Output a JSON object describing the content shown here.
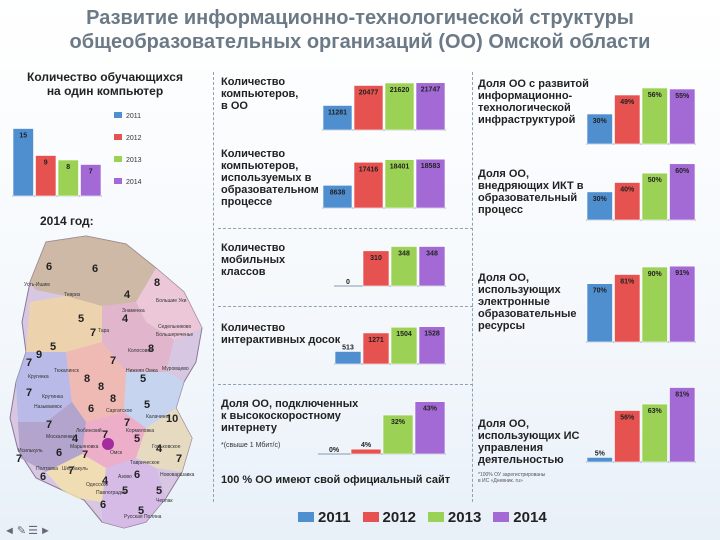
{
  "title_line1": "Развитие информационно-технологической структуры",
  "title_line2": "общеобразовательных организаций (ОО) Омской области",
  "colors": {
    "2011": "#4f8fd0",
    "2012": "#e5524f",
    "2013": "#9bd154",
    "2014": "#a36ad6"
  },
  "left_chart": {
    "title_line1": "Количество обучающихся",
    "title_line2": "на один компьютер"
  },
  "map_section": {
    "title": "2014 год:",
    "regions": [
      "Усть-Ишим",
      "Тевриз",
      "Знаменка",
      "Тара",
      "Большереченье",
      "Колосовка",
      "Кругинка",
      "Тюкалинск",
      "Нижняя Омка",
      "Называевск",
      "Саргатское",
      "Исилькуль",
      "Москаленки",
      "Марьяновка",
      "Омск",
      "Калачинск",
      "Полтавка",
      "Шербакуль",
      "Одесское",
      "Азово",
      "Таврическое",
      "Павлоградка",
      "Русская Поляна",
      "Черлак",
      "Нововаршавка",
      "Любинский",
      "Кормиловка",
      "Горьковское",
      "Муромцево",
      "Седельниково",
      "Крутинка",
      "Большие Уки"
    ],
    "numbers": [
      "6",
      "6",
      "8",
      "4",
      "4",
      "5",
      "5",
      "7",
      "7",
      "8",
      "9",
      "7",
      "8",
      "8",
      "5",
      "7",
      "8",
      "6",
      "5",
      "7",
      "10",
      "7",
      "4",
      "7",
      "5",
      "7",
      "6",
      "7",
      "4",
      "7",
      "6",
      "7",
      "4",
      "6",
      "5",
      "6",
      "5",
      "5"
    ]
  },
  "labels": {
    "computers": [
      "Количество",
      "компьютеров,",
      "в ОО"
    ],
    "computers_edu": [
      "Количество",
      "компьютеров,",
      "используемых в",
      "образовательном",
      "процессе"
    ],
    "mobile": [
      "Количество",
      "мобильных",
      "классов"
    ],
    "boards": [
      "Количество",
      "интерактивных досок"
    ],
    "internet": [
      "Доля ОО, подключенных",
      "к высокоскоростному",
      "интернету"
    ],
    "internet_note": "*(свыше 1 Мбит/с)",
    "site": "100 % ОО имеют свой официальный сайт",
    "infra": [
      "Доля ОО с развитой",
      "информационно-",
      "технологической",
      "инфраструктурой"
    ],
    "ikt": [
      "Доля ОО,",
      "внедряющих ИКТ в",
      "образовательный",
      "процесс"
    ],
    "eresources": [
      "Доля ОО,",
      "использующих",
      "электронные",
      "образовательные",
      "ресурсы"
    ],
    "is": [
      "Доля ОО,",
      "использующих ИС",
      "управления",
      "деятельностью"
    ],
    "is_note": [
      "*100% ОУ зарегистрированы",
      "в ИС «Дневник. ru»"
    ]
  },
  "legend": [
    "2011",
    "2012",
    "2013",
    "2014"
  ],
  "chart_data": [
    {
      "id": "students_per_pc",
      "type": "bar",
      "title": "Количество обучающихся на один компьютер",
      "categories": [
        "2011",
        "2012",
        "2013",
        "2014"
      ],
      "values": [
        15,
        9,
        8,
        7
      ],
      "labels": [
        "15",
        "9",
        "8",
        "7"
      ],
      "ylim": [
        0,
        16
      ]
    },
    {
      "id": "computers",
      "type": "bar",
      "title": "Количество компьютеров, в ОО",
      "categories": [
        "2011",
        "2012",
        "2013",
        "2014"
      ],
      "values": [
        11281,
        20477,
        21620,
        21747
      ],
      "labels": [
        "11281",
        "20477",
        "21620",
        "21747"
      ],
      "ylim": [
        0,
        23000
      ]
    },
    {
      "id": "computers_edu",
      "type": "bar",
      "title": "Количество компьютеров, используемых в образовательном процессе",
      "categories": [
        "2011",
        "2012",
        "2013",
        "2014"
      ],
      "values": [
        8638,
        17416,
        18401,
        18583
      ],
      "labels": [
        "8638",
        "17416",
        "18401",
        "18583"
      ],
      "ylim": [
        0,
        19800
      ]
    },
    {
      "id": "mobile_classes",
      "type": "bar",
      "title": "Количество мобильных классов",
      "categories": [
        "2011",
        "2012",
        "2013",
        "2014"
      ],
      "values": [
        0,
        310,
        348,
        348
      ],
      "labels": [
        "0",
        "310",
        "348",
        "348"
      ],
      "ylim": [
        0,
        370
      ]
    },
    {
      "id": "boards",
      "type": "bar",
      "title": "Количество интерактивных досок",
      "categories": [
        "2011",
        "2012",
        "2013",
        "2014"
      ],
      "values": [
        513,
        1271,
        1504,
        1528
      ],
      "labels": [
        "513",
        "1271",
        "1504",
        "1528"
      ],
      "ylim": [
        0,
        1800
      ]
    },
    {
      "id": "internet",
      "type": "bar",
      "title": "Доля ОО, подключенных к высокоскоростному интернету",
      "categories": [
        "2011",
        "2012",
        "2013",
        "2014"
      ],
      "values": [
        0,
        4,
        32,
        43
      ],
      "labels": [
        "0%",
        "4%",
        "32%",
        "43%"
      ],
      "ylim": [
        0,
        46
      ]
    },
    {
      "id": "infra",
      "type": "bar",
      "title": "Доля ОО с развитой информационно-технологической инфраструктурой",
      "categories": [
        "2011",
        "2012",
        "2013",
        "2014"
      ],
      "values": [
        30,
        49,
        56,
        55
      ],
      "labels": [
        "30%",
        "49%",
        "56%",
        "55%"
      ],
      "ylim": [
        0,
        60
      ]
    },
    {
      "id": "ikt",
      "type": "bar",
      "title": "Доля ОО, внедряющих ИКТ в образовательный процесс",
      "categories": [
        "2011",
        "2012",
        "2013",
        "2014"
      ],
      "values": [
        30,
        40,
        50,
        60
      ],
      "labels": [
        "30%",
        "40%",
        "50%",
        "60%"
      ],
      "ylim": [
        0,
        64
      ]
    },
    {
      "id": "eresources",
      "type": "bar",
      "title": "Доля ОО, использующих электронные образовательные ресурсы",
      "categories": [
        "2011",
        "2012",
        "2013",
        "2014"
      ],
      "values": [
        70,
        81,
        90,
        91
      ],
      "labels": [
        "70%",
        "81%",
        "90%",
        "91%"
      ],
      "ylim": [
        0,
        96
      ]
    },
    {
      "id": "is",
      "type": "bar",
      "title": "Доля ОО, использующих ИС управления деятельностью",
      "categories": [
        "2011",
        "2012",
        "2013",
        "2014"
      ],
      "values": [
        5,
        56,
        63,
        81
      ],
      "labels": [
        "5%",
        "56%",
        "63%",
        "81%"
      ],
      "ylim": [
        0,
        87
      ]
    }
  ]
}
